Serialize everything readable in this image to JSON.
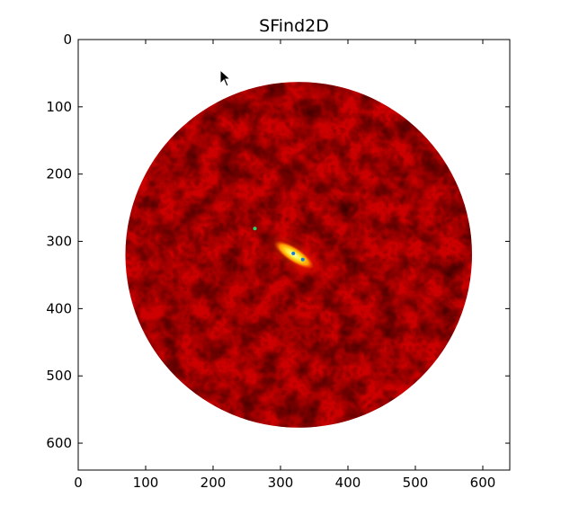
{
  "window": {
    "title": "SFind2D"
  },
  "chart_data": {
    "type": "heatmap",
    "title": "SFind2D",
    "xlabel": "",
    "ylabel": "",
    "xlim": [
      0,
      640
    ],
    "ylim": [
      640,
      0
    ],
    "xticks": [
      0,
      100,
      200,
      300,
      400,
      500,
      600
    ],
    "yticks": [
      0,
      100,
      200,
      300,
      400,
      500,
      600
    ],
    "grid": false,
    "colormap": "hot",
    "image_region": {
      "center": [
        327,
        320
      ],
      "radius": 257,
      "shape": "circular"
    },
    "bright_source": {
      "center": [
        320,
        320
      ],
      "length": 70,
      "angle_deg": 33
    },
    "markers": [
      {
        "x": 262,
        "y": 281,
        "color": "#2bd46a"
      },
      {
        "x": 319,
        "y": 318,
        "color": "#1a7bd6"
      },
      {
        "x": 333,
        "y": 327,
        "color": "#1a7bd6"
      }
    ],
    "colors": {
      "background": "#ffffff",
      "dark": "#1a0000",
      "mid": "#cc0000",
      "bright": "#ffff66"
    }
  },
  "cursor": {
    "icon": "mouse-pointer-icon"
  }
}
